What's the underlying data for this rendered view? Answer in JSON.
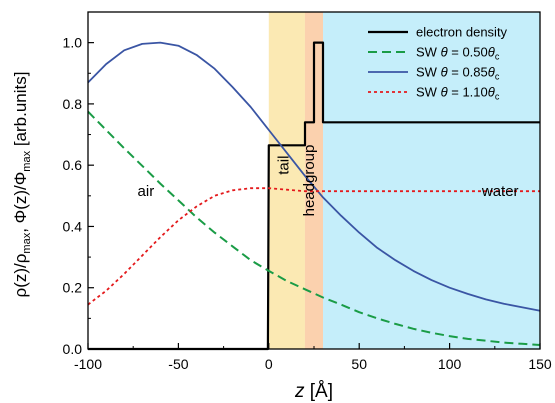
{
  "chart_data": {
    "type": "line",
    "xlabel_var": "z",
    "xlabel_unit": "[Å]",
    "ylabel_parts": [
      "ρ(z)/ρ",
      "max",
      ", Φ(z)/Φ",
      "max",
      " [arb.units]"
    ],
    "xlim": [
      -100,
      150
    ],
    "ylim": [
      0,
      1.1
    ],
    "xticks": [
      -100,
      -50,
      0,
      50,
      100,
      150
    ],
    "yticks": [
      0.0,
      0.2,
      0.4,
      0.6,
      0.8,
      1.0
    ],
    "ytick_labels": [
      "0.0",
      "0.2",
      "0.4",
      "0.6",
      "0.8",
      "1.0"
    ],
    "regions": [
      {
        "name": "tail",
        "x0": 0,
        "x1": 20,
        "color": "#fbe9b3",
        "label_x": 11,
        "label_y": 0.6
      },
      {
        "name": "headgroup",
        "x0": 20,
        "x1": 30,
        "color": "#fbd1ae",
        "label_x": 25,
        "label_y": 0.55
      },
      {
        "name": "water",
        "x0": 30,
        "x1": 150,
        "color": "#c5eefa",
        "label_x": 128,
        "label_y": 0.5
      }
    ],
    "annotations": [
      {
        "text": "air",
        "x": -68,
        "y": 0.5
      }
    ],
    "series": [
      {
        "name": "electron density",
        "legend_parts": [
          "electron density"
        ],
        "color": "#000000",
        "dash": "",
        "width": 2.2,
        "x": [
          -100,
          -0.5,
          0,
          20,
          20,
          25,
          25,
          30,
          30,
          150
        ],
        "y": [
          0,
          0,
          0.665,
          0.665,
          0.74,
          0.74,
          1.0,
          1.0,
          0.74,
          0.74
        ]
      },
      {
        "name": "SW θ = 0.50θc",
        "legend_parts": [
          "SW ",
          "θ",
          " = 0.50",
          "θ",
          "c"
        ],
        "color": "#1a9c46",
        "dash": "9,5",
        "width": 2,
        "x": [
          -100,
          -90,
          -80,
          -70,
          -60,
          -50,
          -40,
          -30,
          -20,
          -10,
          0,
          10,
          20,
          30,
          40,
          50,
          60,
          70,
          80,
          90,
          100,
          110,
          120,
          130,
          140,
          150
        ],
        "y": [
          0.775,
          0.715,
          0.655,
          0.598,
          0.54,
          0.485,
          0.43,
          0.38,
          0.335,
          0.29,
          0.255,
          0.222,
          0.195,
          0.168,
          0.145,
          0.12,
          0.1,
          0.082,
          0.066,
          0.053,
          0.042,
          0.033,
          0.027,
          0.021,
          0.017,
          0.013
        ]
      },
      {
        "name": "SW θ = 0.85θc",
        "legend_parts": [
          "SW ",
          "θ",
          " = 0.85",
          "θ",
          "c"
        ],
        "color": "#3a55a4",
        "dash": "",
        "width": 1.8,
        "x": [
          -100,
          -90,
          -80,
          -70,
          -60,
          -50,
          -40,
          -30,
          -20,
          -10,
          0,
          10,
          20,
          30,
          40,
          50,
          60,
          70,
          80,
          90,
          100,
          110,
          120,
          130,
          140,
          150
        ],
        "y": [
          0.87,
          0.93,
          0.975,
          0.996,
          1.0,
          0.99,
          0.96,
          0.915,
          0.855,
          0.79,
          0.715,
          0.64,
          0.565,
          0.495,
          0.435,
          0.38,
          0.33,
          0.29,
          0.255,
          0.225,
          0.2,
          0.18,
          0.162,
          0.148,
          0.136,
          0.125
        ]
      },
      {
        "name": "SW θ = 1.10θc",
        "legend_parts": [
          "SW ",
          "θ",
          " = 1.10",
          "θ",
          "c"
        ],
        "color": "#e41a1c",
        "dash": "3,3",
        "width": 1.8,
        "x": [
          -100,
          -90,
          -80,
          -70,
          -60,
          -50,
          -40,
          -30,
          -20,
          -10,
          0,
          10,
          20,
          30,
          40,
          60,
          80,
          100,
          120,
          150
        ],
        "y": [
          0.145,
          0.19,
          0.245,
          0.305,
          0.365,
          0.42,
          0.465,
          0.5,
          0.518,
          0.525,
          0.525,
          0.52,
          0.515,
          0.515,
          0.515,
          0.515,
          0.515,
          0.515,
          0.515,
          0.515
        ]
      }
    ]
  }
}
